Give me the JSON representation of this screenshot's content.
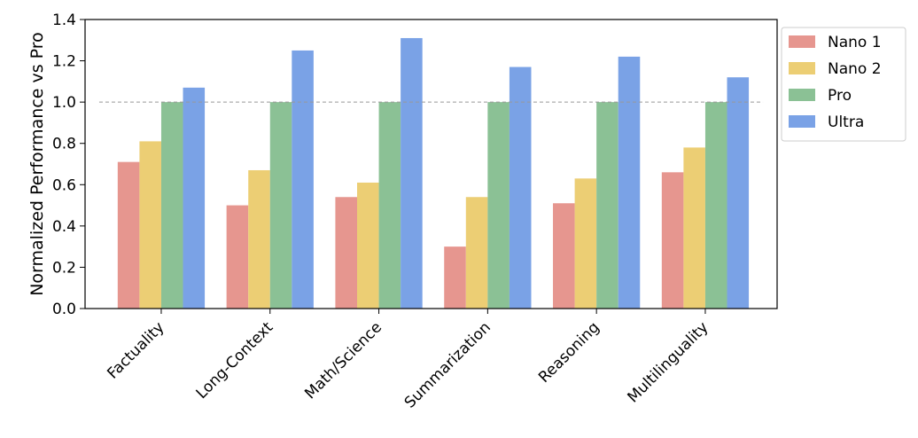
{
  "chart_data": {
    "type": "bar",
    "ylabel": "Normalized Performance vs Pro",
    "xlabel": "",
    "ylim": [
      0,
      1.4
    ],
    "yticks": [
      "0.0",
      "0.2",
      "0.4",
      "0.6",
      "0.8",
      "1.0",
      "1.2",
      "1.4"
    ],
    "categories": [
      "Factuality",
      "Long-Context",
      "Math/Science",
      "Summarization",
      "Reasoning",
      "Multilinguality"
    ],
    "series": [
      {
        "name": "Nano 1",
        "color": "#e6968f",
        "values": [
          0.71,
          0.5,
          0.54,
          0.3,
          0.51,
          0.66
        ]
      },
      {
        "name": "Nano 2",
        "color": "#ecce74",
        "values": [
          0.81,
          0.67,
          0.61,
          0.54,
          0.63,
          0.78
        ]
      },
      {
        "name": "Pro",
        "color": "#8bc195",
        "values": [
          1.0,
          1.0,
          1.0,
          1.0,
          1.0,
          1.0
        ]
      },
      {
        "name": "Ultra",
        "color": "#7aa2e6",
        "values": [
          1.07,
          1.25,
          1.31,
          1.17,
          1.22,
          1.12
        ]
      }
    ],
    "reference_line": 1.0,
    "legend_position": "outside-right-top",
    "grid": false
  }
}
